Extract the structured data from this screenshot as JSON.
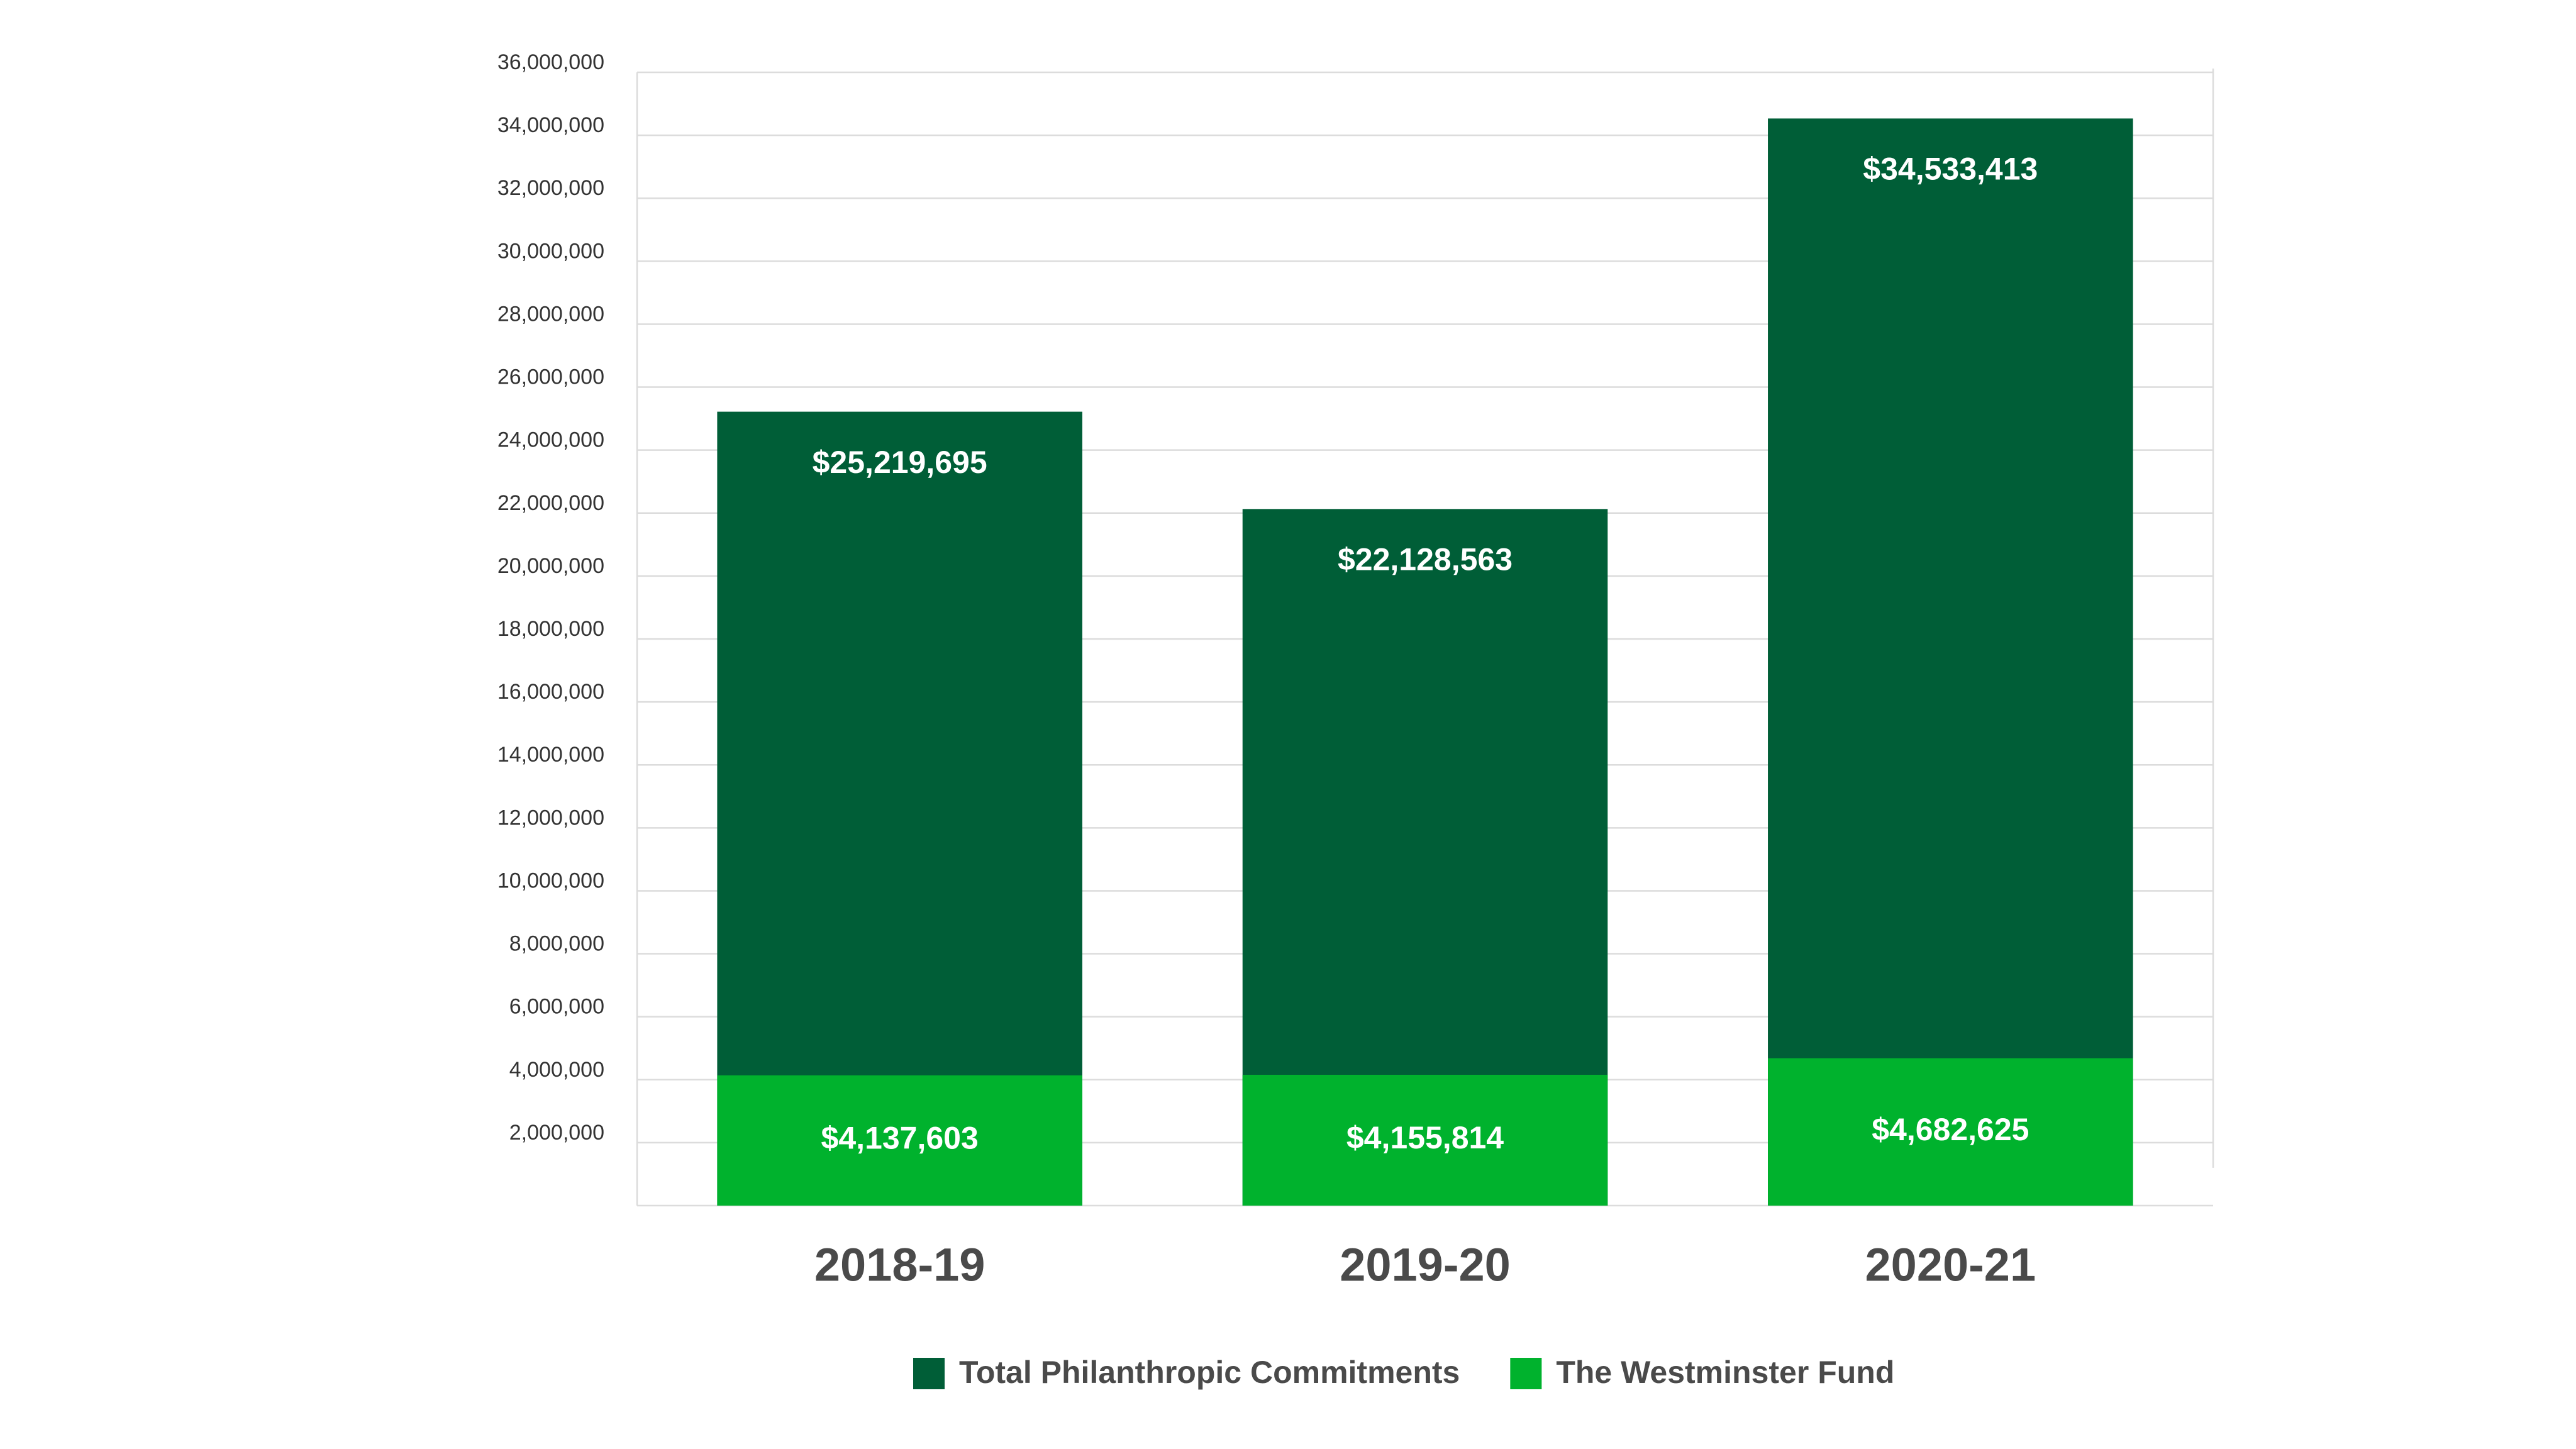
{
  "chart_data": {
    "type": "bar",
    "barmode": "overlay",
    "categories": [
      "2018-19",
      "2019-20",
      "2020-21"
    ],
    "series": [
      {
        "name": "Total Philanthropic Commitments",
        "color": "#005e37",
        "values": [
          25219695,
          22128563,
          34533413
        ],
        "value_labels": [
          "$25,219,695",
          "$22,128,563",
          "$34,533,413"
        ]
      },
      {
        "name": "The Westminster Fund",
        "color": "#00b22d",
        "values": [
          4137603,
          4155814,
          4682625
        ],
        "value_labels": [
          "$4,137,603",
          "$4,155,814",
          "$4,682,625"
        ]
      }
    ],
    "ylim": [
      0,
      36000000
    ],
    "yticks": [
      {
        "value": 2000000,
        "label": "2,000,000"
      },
      {
        "value": 4000000,
        "label": "4,000,000"
      },
      {
        "value": 6000000,
        "label": "6,000,000"
      },
      {
        "value": 8000000,
        "label": "8,000,000"
      },
      {
        "value": 10000000,
        "label": "10,000,000"
      },
      {
        "value": 12000000,
        "label": "12,000,000"
      },
      {
        "value": 14000000,
        "label": "14,000,000"
      },
      {
        "value": 16000000,
        "label": "16,000,000"
      },
      {
        "value": 18000000,
        "label": "18,000,000"
      },
      {
        "value": 20000000,
        "label": "20,000,000"
      },
      {
        "value": 22000000,
        "label": "22,000,000"
      },
      {
        "value": 24000000,
        "label": "24,000,000"
      },
      {
        "value": 26000000,
        "label": "26,000,000"
      },
      {
        "value": 28000000,
        "label": "28,000,000"
      },
      {
        "value": 30000000,
        "label": "30,000,000"
      },
      {
        "value": 32000000,
        "label": "32,000,000"
      },
      {
        "value": 34000000,
        "label": "34,000,000"
      },
      {
        "value": 36000000,
        "label": "36,000,000"
      }
    ],
    "grid": true,
    "legend": "bottom"
  }
}
